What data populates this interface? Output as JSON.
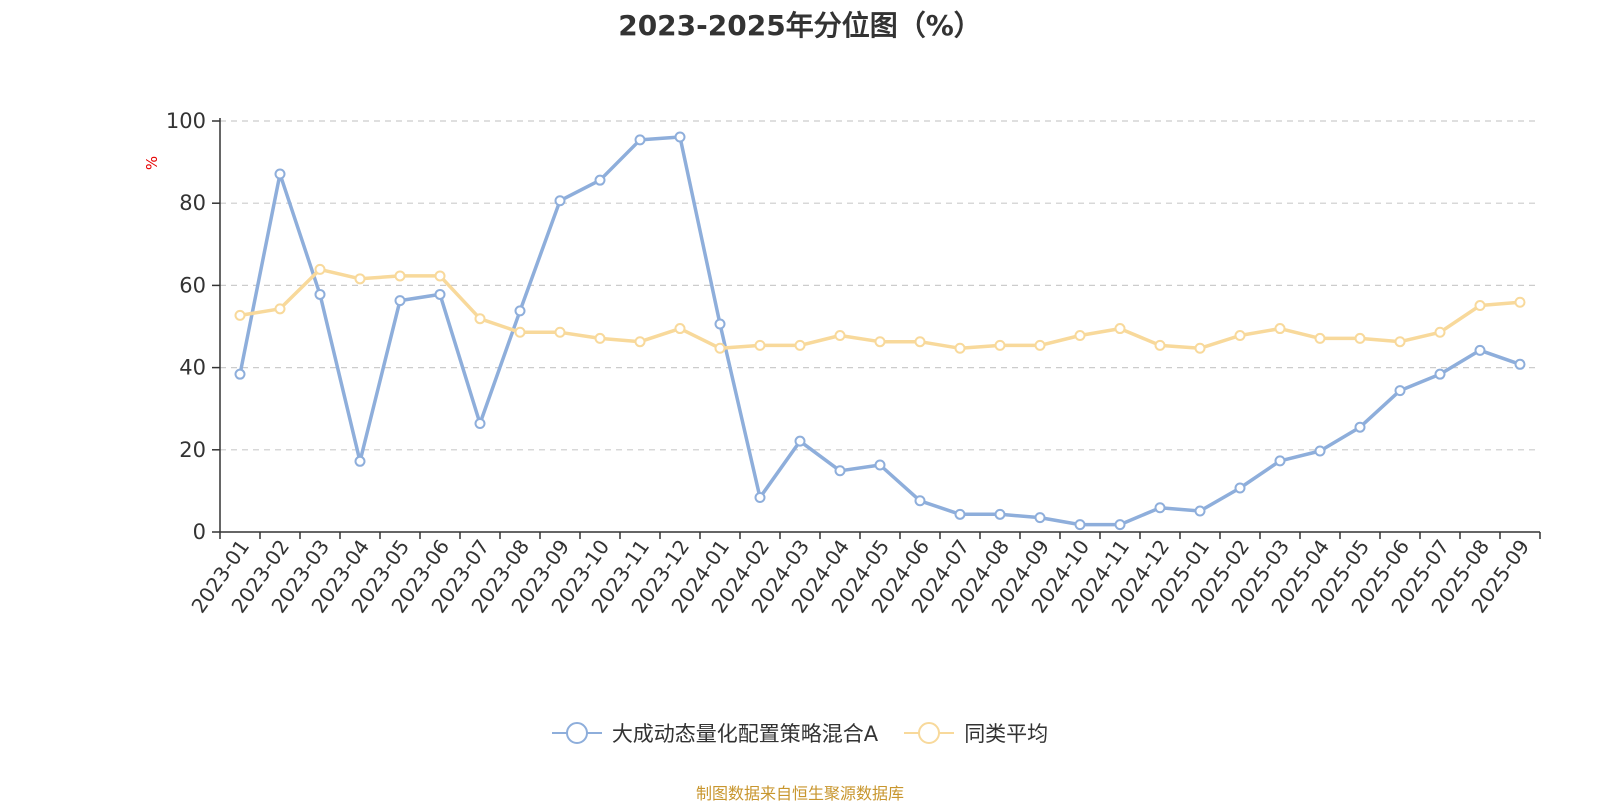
{
  "chart_data": {
    "type": "line",
    "title": "2023-2025年分位图（%）",
    "ylabel": "%",
    "xlabel": "",
    "ylim": [
      0,
      100
    ],
    "yticks": [
      0,
      20,
      40,
      60,
      80,
      100
    ],
    "grid": true,
    "legend_position": "bottom",
    "categories": [
      "2023-01",
      "2023-02",
      "2023-03",
      "2023-04",
      "2023-05",
      "2023-06",
      "2023-07",
      "2023-08",
      "2023-09",
      "2023-10",
      "2023-11",
      "2023-12",
      "2024-01",
      "2024-02",
      "2024-03",
      "2024-04",
      "2024-05",
      "2024-06",
      "2024-07",
      "2024-08",
      "2024-09",
      "2024-10",
      "2024-11",
      "2024-12",
      "2025-01",
      "2025-02",
      "2025-03",
      "2025-04",
      "2025-05",
      "2025-06",
      "2025-07",
      "2025-08",
      "2025-09"
    ],
    "series": [
      {
        "name": "大成动态量化配置策略混合A",
        "color": "#8eaedb",
        "values": [
          38.4,
          87.1,
          57.8,
          17.2,
          56.3,
          57.8,
          26.4,
          53.8,
          80.6,
          85.6,
          95.4,
          96.1,
          50.6,
          8.4,
          22.1,
          14.9,
          16.3,
          7.6,
          4.3,
          4.3,
          3.5,
          1.8,
          1.8,
          5.9,
          5.1,
          10.7,
          17.3,
          19.7,
          25.5,
          34.4,
          38.4,
          44.2,
          40.8
        ]
      },
      {
        "name": "同类平均",
        "color": "#f8d99b",
        "values": [
          52.7,
          54.3,
          63.9,
          61.6,
          62.3,
          62.3,
          51.9,
          48.6,
          48.6,
          47.1,
          46.3,
          49.5,
          44.7,
          45.4,
          45.4,
          47.8,
          46.3,
          46.3,
          44.7,
          45.4,
          45.4,
          47.8,
          49.5,
          45.4,
          44.7,
          47.8,
          49.5,
          47.1,
          47.1,
          46.3,
          48.6,
          55.1,
          55.9
        ]
      }
    ]
  },
  "source_text": "制图数据来自恒生聚源数据库",
  "colors": {
    "axis": "#333333",
    "grid": "#cccccc",
    "ylabel": "#e60000",
    "source": "#c8962e",
    "title": "#333333"
  }
}
